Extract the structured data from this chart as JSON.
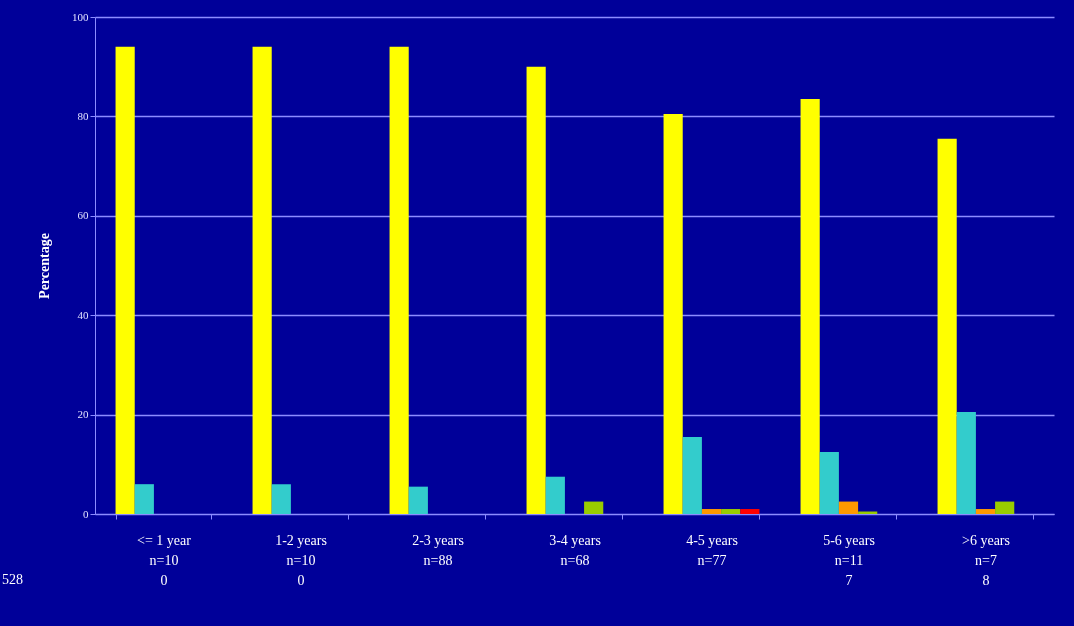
{
  "chart_data": {
    "type": "bar",
    "ylabel": "Percentage",
    "categories": [
      "<= 1 year\nn=10\n0",
      "1-2 years\nn=10\n0",
      "2-3 years\nn=88",
      "3-4 years\nn=68",
      "4-5 years\nn=77",
      "5-6 years\nn=11\n7",
      ">6 years\nn=7\n8"
    ],
    "series": [
      {
        "color": "#ffff00",
        "values": [
          94,
          94,
          94,
          90,
          80.5,
          83.5,
          75.5
        ]
      },
      {
        "color": "#33cccc",
        "values": [
          6,
          6,
          5.5,
          7.5,
          15.5,
          12.5,
          20.5
        ]
      },
      {
        "color": "#ff9900",
        "values": [
          null,
          null,
          null,
          null,
          1,
          2.5,
          1
        ]
      },
      {
        "color": "#99cc00",
        "values": [
          null,
          null,
          null,
          2.5,
          1,
          0.5,
          2.5
        ]
      },
      {
        "color": "#ff0000",
        "values": [
          null,
          null,
          null,
          null,
          1,
          null,
          null
        ]
      }
    ],
    "ylim": [
      0,
      100
    ],
    "yticks": [
      0,
      20,
      40,
      60,
      80,
      100
    ],
    "grid": "y",
    "annotations": [
      "528"
    ]
  }
}
